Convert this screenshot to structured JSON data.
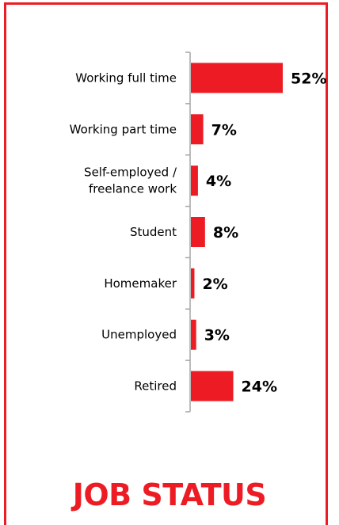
{
  "colors": {
    "accent": "#ed1c24",
    "axis": "#a6a6a6",
    "text": "#000000"
  },
  "footer": {
    "title": "JOB STATUS"
  },
  "chart_data": {
    "type": "bar",
    "orientation": "horizontal",
    "categories": [
      "Working full time",
      "Working part time",
      "Self-employed / freelance work",
      "Student",
      "Homemaker",
      "Unemployed",
      "Retired"
    ],
    "category_lines": [
      [
        "Working full time"
      ],
      [
        "Working part time"
      ],
      [
        "Self-employed /",
        "freelance work"
      ],
      [
        "Student"
      ],
      [
        "Homemaker"
      ],
      [
        "Unemployed"
      ],
      [
        "Retired"
      ]
    ],
    "values": [
      52,
      7,
      4,
      8,
      2,
      3,
      24
    ],
    "value_labels": [
      "52%",
      "7%",
      "4%",
      "8%",
      "2%",
      "3%",
      "24%"
    ],
    "unit": "%",
    "xlim": [
      0,
      52
    ],
    "grid": false,
    "legend": "none"
  }
}
